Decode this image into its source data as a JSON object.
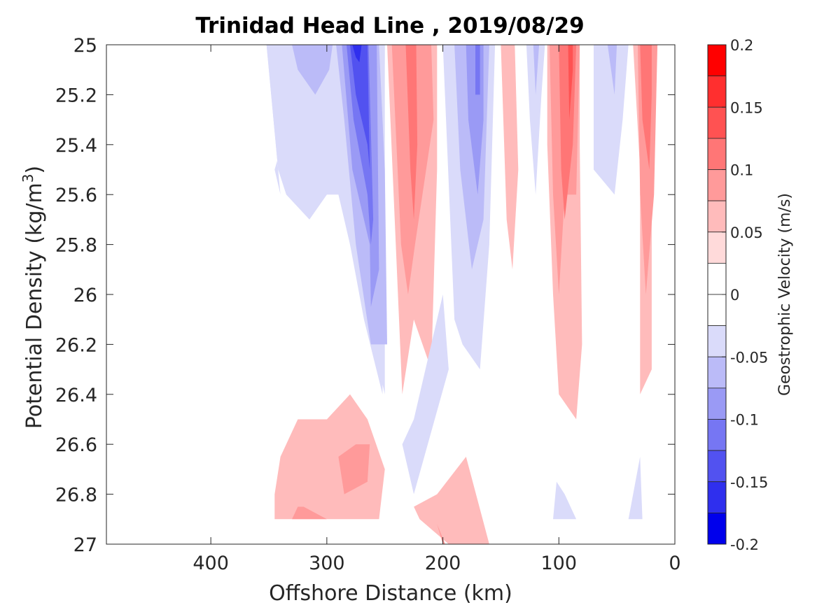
{
  "chart_data": {
    "type": "contourf",
    "title": "Trinidad Head Line , 2019/08/29",
    "xlabel": "Offshore Distance (km)",
    "ylabel_main": "Potential Density (kg/m",
    "ylabel_sup": "3",
    "ylabel_end": ")",
    "colorbar_label": "Geostrophic Velocity (m/s)",
    "xlim": [
      490,
      0
    ],
    "ylim": [
      25,
      27
    ],
    "x_reversed": true,
    "y_reversed": true,
    "xticks": [
      400,
      300,
      200,
      100,
      0
    ],
    "xtick_labels": [
      "400",
      "300",
      "200",
      "100",
      "0"
    ],
    "yticks": [
      25,
      25.2,
      25.4,
      25.6,
      25.8,
      26,
      26.2,
      26.4,
      26.6,
      26.8,
      27
    ],
    "ytick_labels": [
      "25",
      "25.2",
      "25.4",
      "25.6",
      "25.8",
      "26",
      "26.2",
      "26.4",
      "26.6",
      "26.8",
      "27"
    ],
    "colorbar": {
      "limits": [
        -0.2,
        0.2
      ],
      "ticks": [
        0.2,
        0.15,
        0.1,
        0.05,
        0,
        -0.05,
        -0.1,
        -0.15,
        -0.2
      ],
      "tick_labels": [
        "0.2",
        "0.15",
        "0.1",
        "0.05",
        "0",
        "-0.05",
        "-0.1",
        "-0.15",
        "-0.2"
      ],
      "levels": [
        {
          "from": 0.175,
          "to": 0.2,
          "color": "#ff0000"
        },
        {
          "from": 0.15,
          "to": 0.175,
          "color": "#ff2f2f"
        },
        {
          "from": 0.125,
          "to": 0.15,
          "color": "#ff5252"
        },
        {
          "from": 0.1,
          "to": 0.125,
          "color": "#ff7676"
        },
        {
          "from": 0.075,
          "to": 0.1,
          "color": "#ff9a9a"
        },
        {
          "from": 0.05,
          "to": 0.075,
          "color": "#ffbbbb"
        },
        {
          "from": 0.025,
          "to": 0.05,
          "color": "#ffdada"
        },
        {
          "from": 0,
          "to": 0.025,
          "color": "#ffffff"
        },
        {
          "from": -0.025,
          "to": 0,
          "color": "#ffffff"
        },
        {
          "from": -0.05,
          "to": -0.025,
          "color": "#dadbfa"
        },
        {
          "from": -0.075,
          "to": -0.05,
          "color": "#bbbbf8"
        },
        {
          "from": -0.1,
          "to": -0.075,
          "color": "#9a9af5"
        },
        {
          "from": -0.125,
          "to": -0.1,
          "color": "#7676f3"
        },
        {
          "from": -0.15,
          "to": -0.125,
          "color": "#5252f0"
        },
        {
          "from": -0.175,
          "to": -0.15,
          "color": "#2f2fee"
        },
        {
          "from": -0.2,
          "to": -0.175,
          "color": "#0000ec"
        }
      ]
    },
    "regions": [
      {
        "level": -0.05,
        "points": [
          [
            352,
            25
          ],
          [
            250,
            25
          ],
          [
            250,
            26.4
          ],
          [
            260,
            26.2
          ],
          [
            280,
            25.8
          ],
          [
            290,
            25.5
          ],
          [
            300,
            25.2
          ],
          [
            320,
            25.1
          ],
          [
            345,
            25.5
          ],
          [
            340,
            25.6
          ]
        ],
        "label": "neg-west-outer"
      },
      {
        "level": -0.05,
        "points": [
          [
            352,
            25
          ],
          [
            342,
            25.5
          ],
          [
            335,
            25.6
          ],
          [
            315,
            25.7
          ],
          [
            300,
            25.6
          ],
          [
            290,
            25.6
          ],
          [
            280,
            25.8
          ],
          [
            268,
            26.1
          ],
          [
            252,
            26.4
          ],
          [
            250,
            25
          ],
          [
            352,
            25
          ]
        ],
        "label": "neg-west-fill"
      },
      {
        "level": -0.075,
        "points": [
          [
            330,
            25
          ],
          [
            325,
            25.1
          ],
          [
            310,
            25.2
          ],
          [
            298,
            25.1
          ],
          [
            295,
            25
          ],
          [
            330,
            25
          ]
        ],
        "label": "neg-west-mid"
      },
      {
        "level": -0.075,
        "points": [
          [
            292,
            25
          ],
          [
            285,
            25.3
          ],
          [
            275,
            25.8
          ],
          [
            262,
            26.2
          ],
          [
            248,
            26.2
          ],
          [
            250,
            25.5
          ],
          [
            255,
            25
          ]
        ],
        "label": "neg-west-inner1"
      },
      {
        "level": -0.1,
        "points": [
          [
            287,
            25
          ],
          [
            278,
            25.5
          ],
          [
            263,
            25.8
          ],
          [
            262,
            26.05
          ],
          [
            255,
            25.9
          ],
          [
            257,
            25
          ],
          [
            287,
            25
          ]
        ],
        "label": "neg-west-inner2"
      },
      {
        "level": -0.125,
        "points": [
          [
            283,
            25
          ],
          [
            277,
            25.3
          ],
          [
            265,
            25.6
          ],
          [
            262,
            25.8
          ],
          [
            260,
            25.7
          ],
          [
            264,
            25
          ],
          [
            283,
            25
          ]
        ],
        "label": "neg-west-inner3"
      },
      {
        "level": -0.15,
        "points": [
          [
            280,
            25
          ],
          [
            275,
            25.2
          ],
          [
            265,
            25.4
          ],
          [
            263,
            25.5
          ],
          [
            265,
            25
          ],
          [
            280,
            25
          ]
        ],
        "label": "neg-west-core"
      },
      {
        "level": -0.175,
        "points": [
          [
            278,
            25
          ],
          [
            275,
            25.05
          ],
          [
            272,
            25.07
          ],
          [
            270,
            25
          ],
          [
            278,
            25
          ]
        ],
        "label": "neg-west-peak"
      },
      {
        "level": 0.05,
        "points": [
          [
            248,
            25
          ],
          [
            235,
            26.4
          ],
          [
            225,
            26.1
          ],
          [
            210,
            26.3
          ],
          [
            205,
            25.5
          ],
          [
            205,
            25
          ],
          [
            248,
            25
          ]
        ],
        "label": "pos-1-outer"
      },
      {
        "level": 0.075,
        "points": [
          [
            244,
            25
          ],
          [
            236,
            25.8
          ],
          [
            230,
            26.0
          ],
          [
            224,
            25.8
          ],
          [
            208,
            25.3
          ],
          [
            210,
            25
          ],
          [
            244,
            25
          ]
        ],
        "label": "pos-1-mid"
      },
      {
        "level": 0.1,
        "points": [
          [
            232,
            25
          ],
          [
            228,
            25.5
          ],
          [
            225,
            25.7
          ],
          [
            222,
            25.4
          ],
          [
            223,
            25
          ],
          [
            232,
            25
          ]
        ],
        "label": "pos-1-core"
      },
      {
        "level": -0.05,
        "points": [
          [
            200,
            25
          ],
          [
            190,
            26.1
          ],
          [
            183,
            26.2
          ],
          [
            168,
            26.3
          ],
          [
            160,
            25.8
          ],
          [
            155,
            25
          ],
          [
            200,
            25
          ]
        ],
        "label": "neg-2-outer"
      },
      {
        "level": -0.05,
        "points": [
          [
            200,
            26
          ],
          [
            195,
            26.3
          ],
          [
            225,
            26.8
          ],
          [
            235,
            26.6
          ],
          [
            225,
            26.5
          ],
          [
            200,
            26
          ]
        ],
        "label": "neg-2-tail"
      },
      {
        "level": -0.075,
        "points": [
          [
            190,
            25
          ],
          [
            185,
            25.5
          ],
          [
            175,
            25.9
          ],
          [
            165,
            25.7
          ],
          [
            160,
            25
          ],
          [
            190,
            25
          ]
        ],
        "label": "neg-2-mid"
      },
      {
        "level": -0.1,
        "points": [
          [
            180,
            25
          ],
          [
            178,
            25.3
          ],
          [
            170,
            25.6
          ],
          [
            165,
            25.3
          ],
          [
            165,
            25
          ],
          [
            180,
            25
          ]
        ],
        "label": "neg-2-inner"
      },
      {
        "level": -0.125,
        "points": [
          [
            172,
            25
          ],
          [
            172,
            25.2
          ],
          [
            168,
            25.2
          ],
          [
            168,
            25
          ],
          [
            172,
            25
          ]
        ],
        "label": "neg-2-core"
      },
      {
        "level": 0.05,
        "points": [
          [
            150,
            25
          ],
          [
            145,
            25.7
          ],
          [
            140,
            25.9
          ],
          [
            135,
            25.5
          ],
          [
            138,
            25
          ],
          [
            150,
            25
          ]
        ],
        "label": "pos-2"
      },
      {
        "level": 0.05,
        "points": [
          [
            145,
            25
          ],
          [
            142,
            25.05
          ],
          [
            140,
            25
          ],
          [
            145,
            25
          ]
        ],
        "label": "pos-2b"
      },
      {
        "level": -0.05,
        "points": [
          [
            128,
            25
          ],
          [
            125,
            25.3
          ],
          [
            120,
            25.6
          ],
          [
            115,
            25.2
          ],
          [
            112,
            25
          ],
          [
            128,
            25
          ]
        ],
        "label": "neg-3"
      },
      {
        "level": -0.075,
        "points": [
          [
            122,
            25
          ],
          [
            120,
            25.2
          ],
          [
            117,
            25
          ],
          [
            122,
            25
          ]
        ],
        "label": "neg-3b"
      },
      {
        "level": 0.05,
        "points": [
          [
            110,
            25
          ],
          [
            110,
            25.4
          ],
          [
            105,
            26.0
          ],
          [
            100,
            26.4
          ],
          [
            85,
            26.5
          ],
          [
            80,
            26.2
          ],
          [
            82,
            25.4
          ],
          [
            82,
            25
          ],
          [
            110,
            25
          ]
        ],
        "label": "pos-3-outer"
      },
      {
        "level": 0.075,
        "points": [
          [
            108,
            25
          ],
          [
            105,
            25.6
          ],
          [
            100,
            26.0
          ],
          [
            95,
            25.6
          ],
          [
            85,
            25.6
          ],
          [
            82,
            25
          ],
          [
            108,
            25
          ]
        ],
        "label": "pos-3-mid"
      },
      {
        "level": 0.1,
        "points": [
          [
            100,
            25
          ],
          [
            98,
            25.5
          ],
          [
            95,
            25.7
          ],
          [
            88,
            25.4
          ],
          [
            85,
            25
          ],
          [
            100,
            25
          ]
        ],
        "label": "pos-3-inner"
      },
      {
        "level": 0.125,
        "points": [
          [
            92,
            25
          ],
          [
            91,
            25.3
          ],
          [
            88,
            25.1
          ],
          [
            88,
            25
          ],
          [
            92,
            25
          ]
        ],
        "label": "pos-3-core"
      },
      {
        "level": -0.05,
        "points": [
          [
            70,
            25
          ],
          [
            70,
            25.5
          ],
          [
            52,
            25.6
          ],
          [
            45,
            25.3
          ],
          [
            40,
            25
          ],
          [
            70,
            25
          ]
        ],
        "label": "neg-4"
      },
      {
        "level": -0.075,
        "points": [
          [
            58,
            25
          ],
          [
            52,
            25.2
          ],
          [
            50,
            25
          ],
          [
            58,
            25
          ]
        ],
        "label": "neg-4b"
      },
      {
        "level": 0.05,
        "points": [
          [
            36,
            25
          ],
          [
            30,
            25.5
          ],
          [
            30,
            26.4
          ],
          [
            20,
            26.3
          ],
          [
            20,
            25.2
          ],
          [
            15,
            25
          ],
          [
            36,
            25
          ]
        ],
        "label": "pos-4-outer"
      },
      {
        "level": 0.075,
        "points": [
          [
            32,
            25
          ],
          [
            30,
            25.6
          ],
          [
            25,
            26.0
          ],
          [
            18,
            25.6
          ],
          [
            15,
            25
          ],
          [
            32,
            25
          ]
        ],
        "label": "pos-4-mid"
      },
      {
        "level": 0.1,
        "points": [
          [
            30,
            25
          ],
          [
            28,
            25.3
          ],
          [
            22,
            25.5
          ],
          [
            20,
            25.2
          ],
          [
            20,
            25
          ],
          [
            30,
            25
          ]
        ],
        "label": "pos-4-inner"
      },
      {
        "level": 0.05,
        "points": [
          [
            345,
            26.8
          ],
          [
            340,
            26.65
          ],
          [
            325,
            26.5
          ],
          [
            300,
            26.5
          ],
          [
            280,
            26.4
          ],
          [
            265,
            26.5
          ],
          [
            250,
            26.7
          ],
          [
            255,
            26.9
          ],
          [
            270,
            26.9
          ],
          [
            280,
            26.9
          ],
          [
            345,
            26.9
          ]
        ],
        "label": "pos-deep-west"
      },
      {
        "level": 0.075,
        "points": [
          [
            275,
            26.6
          ],
          [
            263,
            26.6
          ],
          [
            265,
            26.75
          ],
          [
            285,
            26.8
          ],
          [
            290,
            26.65
          ],
          [
            275,
            26.6
          ]
        ],
        "label": "pos-deep-west-core"
      },
      {
        "level": 0.075,
        "points": [
          [
            320,
            26.85
          ],
          [
            300,
            26.9
          ],
          [
            315,
            26.9
          ],
          [
            330,
            26.9
          ],
          [
            325,
            26.85
          ]
        ],
        "label": "pos-deep-west-core2"
      },
      {
        "level": 0.05,
        "points": [
          [
            225,
            26.85
          ],
          [
            205,
            26.8
          ],
          [
            180,
            26.65
          ],
          [
            160,
            27
          ],
          [
            195,
            27
          ],
          [
            220,
            26.9
          ]
        ],
        "label": "pos-deep-mid"
      },
      {
        "level": 0.075,
        "points": [
          [
            205,
            26.92
          ],
          [
            200,
            27
          ],
          [
            198,
            27
          ],
          [
            205,
            26.92
          ]
        ],
        "label": "pos-deep-mid-core"
      },
      {
        "level": -0.05,
        "points": [
          [
            102,
            26.75
          ],
          [
            95,
            26.8
          ],
          [
            85,
            26.9
          ],
          [
            105,
            26.9
          ],
          [
            102,
            26.75
          ]
        ],
        "label": "neg-deep-1"
      },
      {
        "level": -0.05,
        "points": [
          [
            30,
            26.65
          ],
          [
            40,
            26.9
          ],
          [
            28,
            26.9
          ],
          [
            30,
            26.65
          ]
        ],
        "label": "neg-deep-2"
      }
    ]
  }
}
